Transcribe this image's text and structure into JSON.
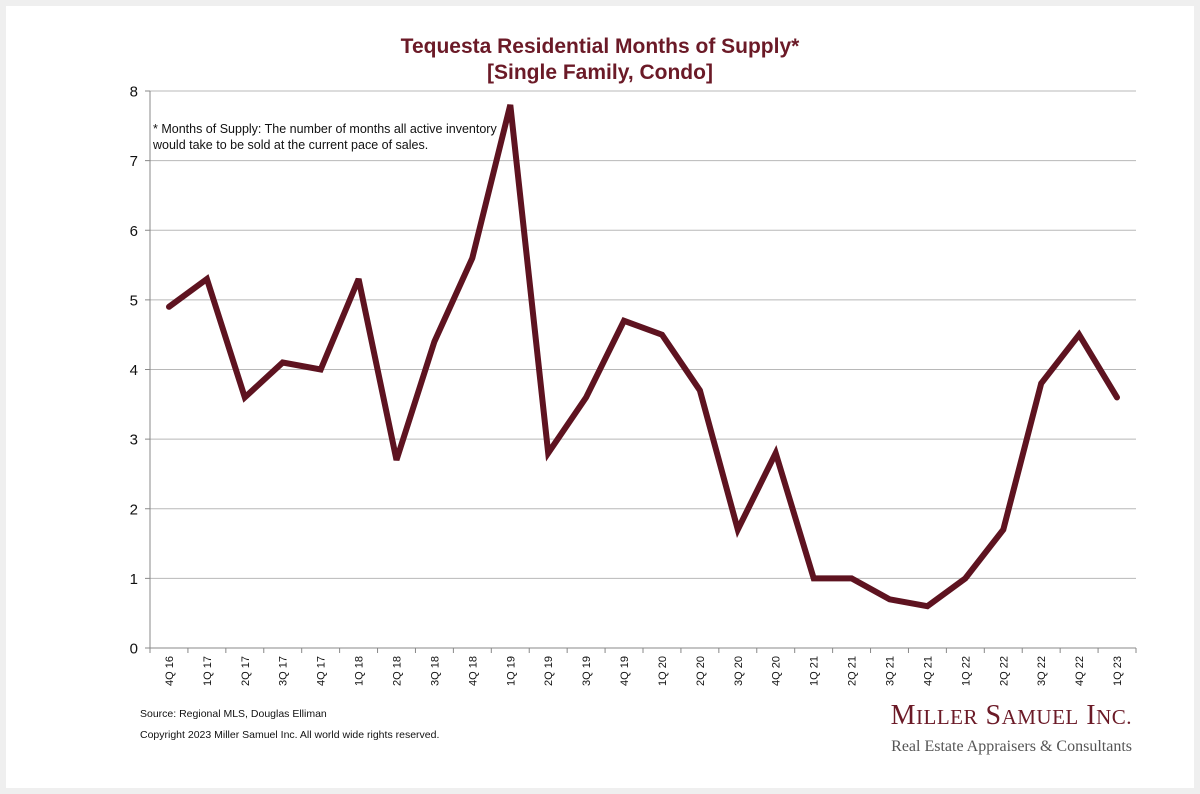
{
  "chart_data": {
    "type": "line",
    "title": "Tequesta Residential Months of Supply*",
    "subtitle": "[Single Family, Condo]",
    "annotation": "* Months of Supply: The number of months all active inventory would take to be sold at the current pace of sales.",
    "categories": [
      "4Q 16",
      "1Q 17",
      "2Q 17",
      "3Q 17",
      "4Q 17",
      "1Q 18",
      "2Q 18",
      "3Q 18",
      "4Q 18",
      "1Q 19",
      "2Q 19",
      "3Q 19",
      "4Q 19",
      "1Q 20",
      "2Q 20",
      "3Q 20",
      "4Q 20",
      "1Q 21",
      "2Q 21",
      "3Q 21",
      "4Q 21",
      "1Q 22",
      "2Q 22",
      "3Q 22",
      "4Q 22",
      "1Q 23"
    ],
    "series": [
      {
        "values": [
          4.9,
          5.3,
          3.6,
          4.1,
          4.0,
          5.3,
          2.7,
          4.4,
          5.6,
          7.8,
          2.8,
          3.6,
          4.7,
          4.5,
          3.7,
          1.7,
          2.8,
          1.0,
          1.0,
          0.7,
          0.6,
          1.0,
          1.7,
          3.8,
          4.5,
          3.6
        ]
      }
    ],
    "ylim": [
      0,
      8
    ],
    "yticks": [
      0,
      1,
      2,
      3,
      4,
      5,
      6,
      7,
      8
    ],
    "grid": true,
    "line_color": "#5e1320"
  },
  "footer": {
    "source": "Source: Regional MLS, Douglas Elliman",
    "copyright": "Copyright 2023 Miller Samuel Inc.  All world wide rights reserved."
  },
  "logo": {
    "name_first": "M",
    "name_first_rest": "ILLER",
    "name_second": "S",
    "name_second_rest": "AMUEL",
    "name_third": "I",
    "name_third_rest": "NC.",
    "tagline": "Real Estate Appraisers & Consultants"
  }
}
